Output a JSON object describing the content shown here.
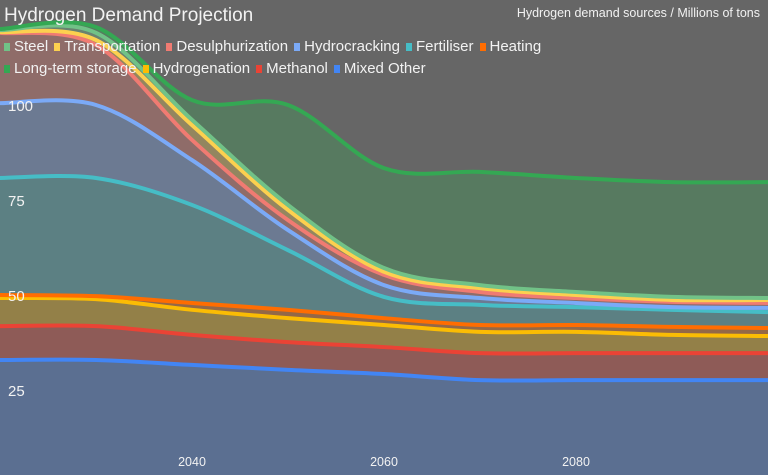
{
  "chart_data": {
    "type": "area",
    "stacked": true,
    "title": "Hydrogen Demand Projection",
    "subtitle": "Hydrogen demand sources / Millions of tons",
    "x": [
      2020,
      2030,
      2040,
      2050,
      2060,
      2070,
      2080,
      2090,
      2100
    ],
    "xlim": [
      2020,
      2100
    ],
    "x_ticks": [
      "2040",
      "2060",
      "2080"
    ],
    "y_ticks": [
      "25",
      "50",
      "75",
      "100"
    ],
    "ylim": [
      0,
      127
    ],
    "grid": false,
    "legend_position": "top-left",
    "series": [
      {
        "name": "Mixed Other",
        "color": "#4285f4",
        "values": [
          32.9,
          32.9,
          31.6,
          30.3,
          29.2,
          27.6,
          27.6,
          27.6,
          27.6
        ]
      },
      {
        "name": "Methanol",
        "color": "#ea4335",
        "values": [
          8.9,
          8.9,
          7.9,
          7.3,
          7.1,
          7.1,
          7.1,
          7.1,
          7.1
        ]
      },
      {
        "name": "Hydrogenation",
        "color": "#fbbc04",
        "values": [
          7.4,
          7.1,
          6.6,
          6.3,
          5.8,
          5.6,
          5.6,
          4.8,
          4.5
        ]
      },
      {
        "name": "Heating",
        "color": "#ff6d01",
        "values": [
          0.8,
          0.8,
          1.8,
          2.2,
          1.8,
          1.8,
          1.8,
          2.1,
          2.1
        ]
      },
      {
        "name": "Fertiliser",
        "color": "#46bdc6",
        "values": [
          30.8,
          31.1,
          25.8,
          15.7,
          5.6,
          5.3,
          4.7,
          4.5,
          4.2
        ]
      },
      {
        "name": "Hydrocracking",
        "color": "#7baaf7",
        "values": [
          19.7,
          19.2,
          11.8,
          5.3,
          3.1,
          1.8,
          1.1,
          0.7,
          1.1
        ]
      },
      {
        "name": "Desulphurization",
        "color": "#f07b72",
        "values": [
          18.5,
          15.8,
          5.3,
          2.6,
          2.7,
          1.6,
          1.3,
          1.4,
          1.3
        ]
      },
      {
        "name": "Transportation",
        "color": "#fcd04f",
        "values": [
          0.2,
          1.3,
          3.9,
          2.7,
          0.8,
          1.0,
          0.8,
          0.5,
          0.8
        ]
      },
      {
        "name": "Steel",
        "color": "#71c287",
        "values": [
          0.5,
          1.9,
          1.4,
          1.3,
          1.0,
          0.8,
          0.8,
          0.8,
          0.5
        ]
      },
      {
        "name": "Long-term storage",
        "color": "#34a853",
        "values": [
          0.3,
          1.5,
          5.2,
          26.3,
          26.3,
          29.8,
          30.0,
          30.2,
          30.5
        ]
      }
    ],
    "legend_order": [
      "Steel",
      "Transportation",
      "Desulphurization",
      "Hydrocracking",
      "Fertiliser",
      "Heating",
      "Long-term storage",
      "Hydrogenation",
      "Methanol",
      "Mixed Other"
    ]
  }
}
